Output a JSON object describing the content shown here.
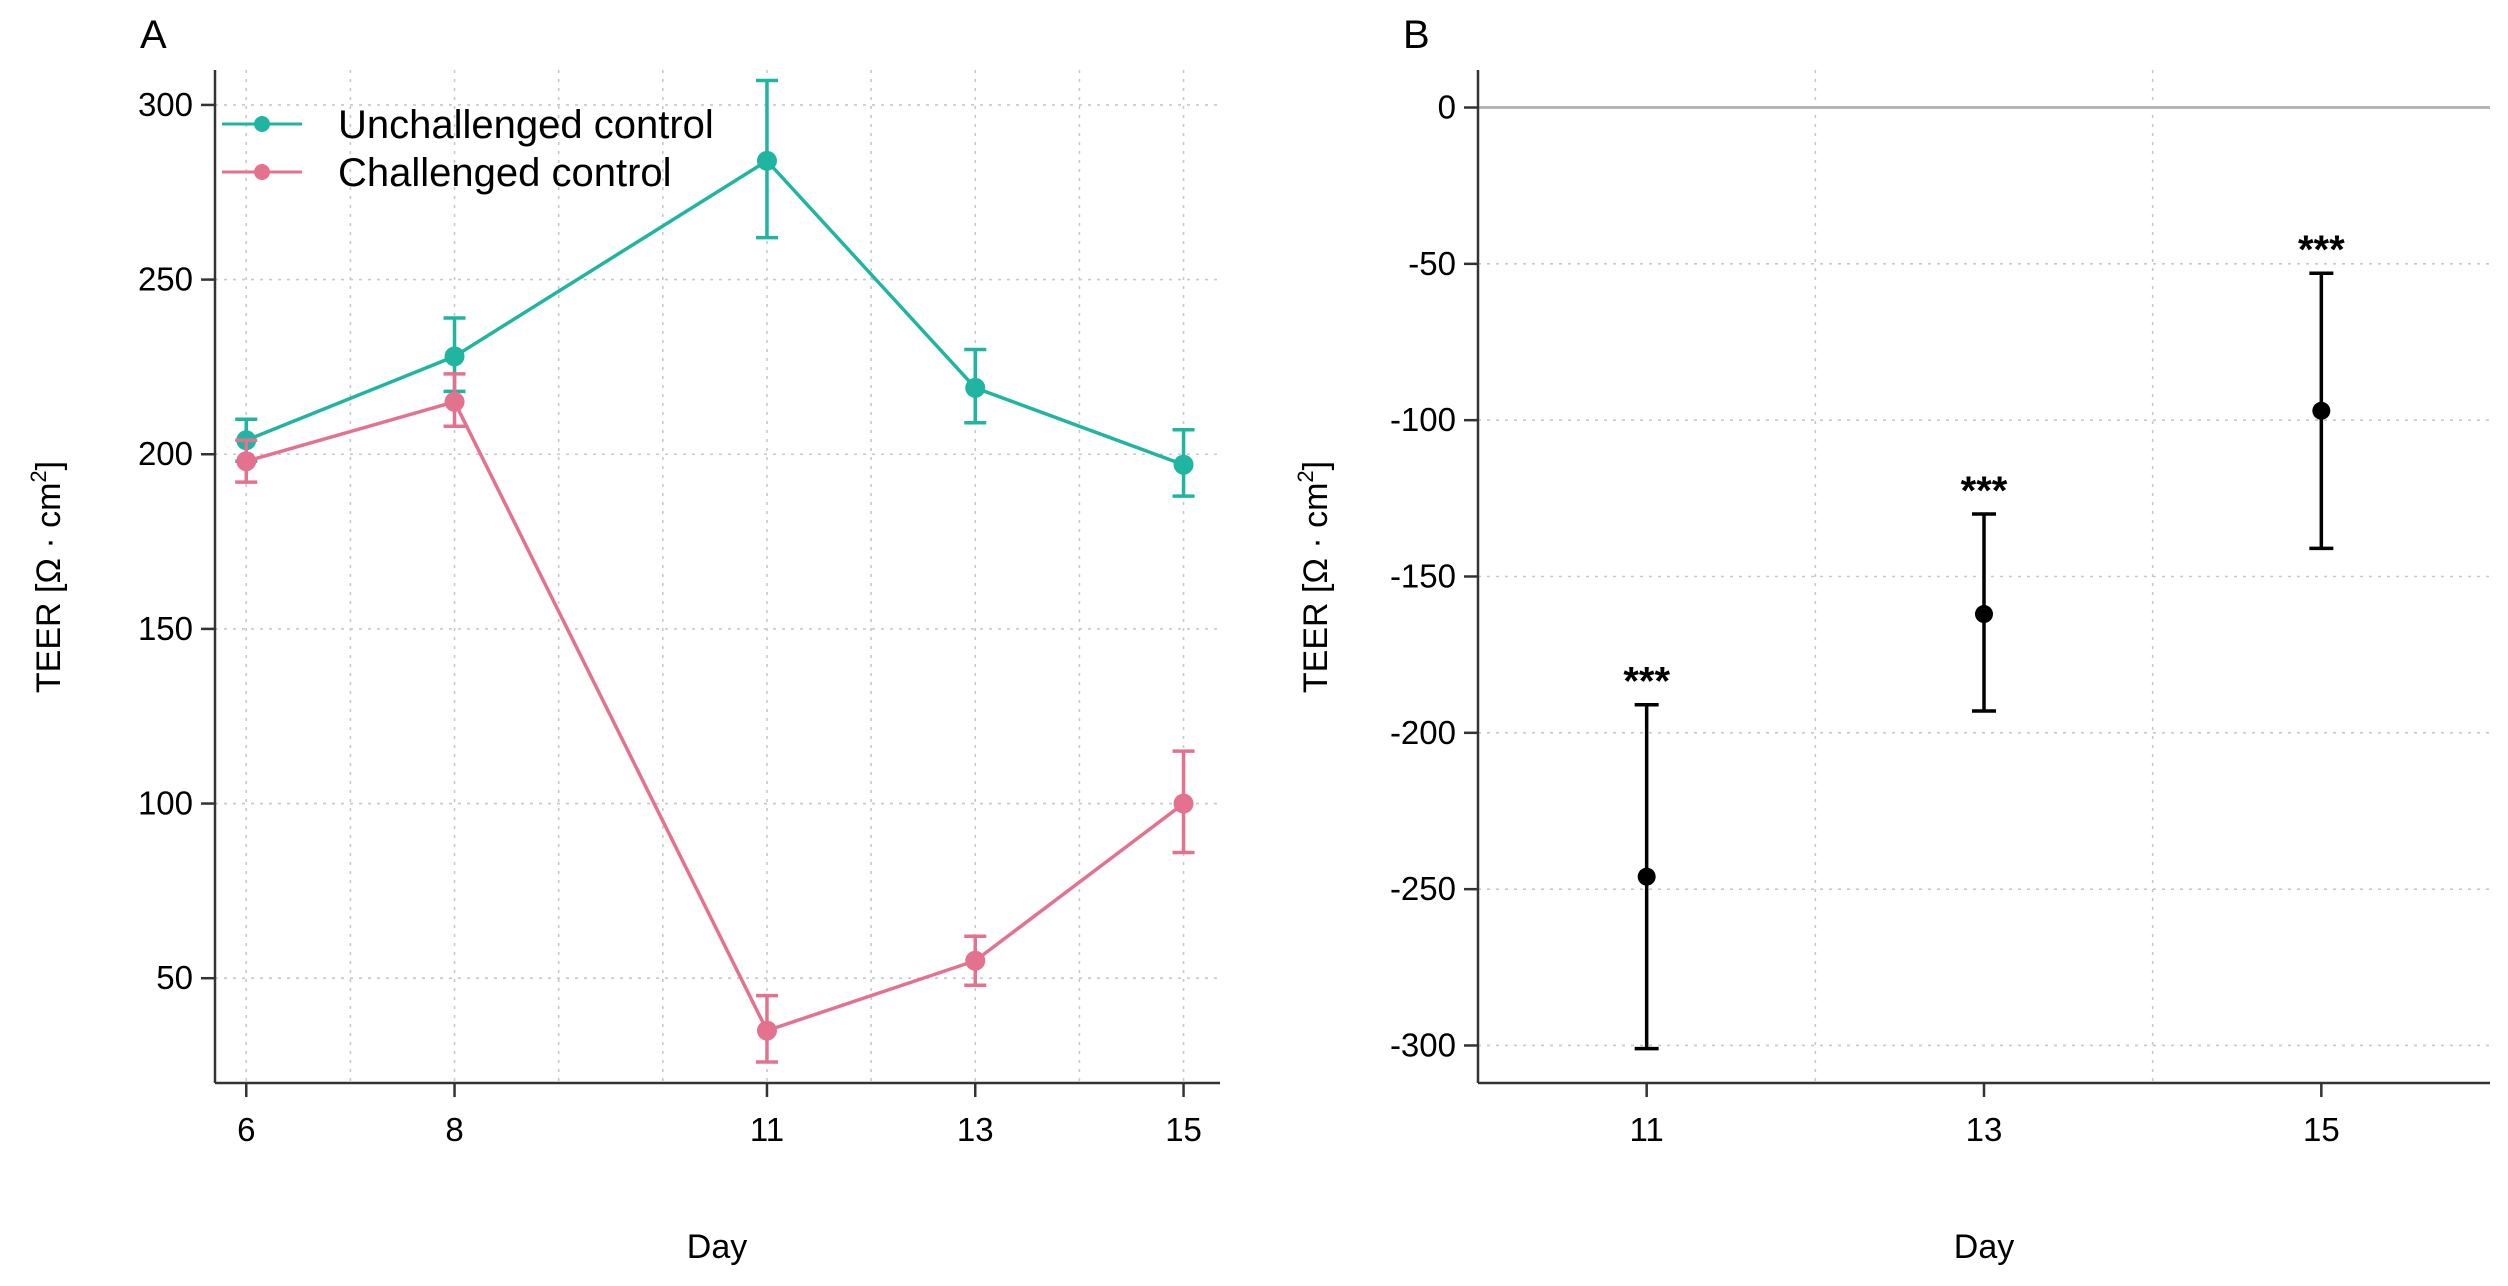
{
  "chart_data": [
    {
      "type": "line",
      "panel_label": "A",
      "xlabel": "Day",
      "ylabel": "TEER [Ω · cm²]",
      "ylabel_main": "TEER [Ω · cm",
      "ylabel_sup": "2",
      "ylabel_end": "]",
      "x": [
        6,
        8,
        11,
        13,
        15
      ],
      "x_tick_labels": [
        "6",
        "8",
        "11",
        "13",
        "15"
      ],
      "xlim": [
        5.7,
        15.35
      ],
      "ylim": [
        20,
        310
      ],
      "y_ticks": [
        50,
        100,
        150,
        200,
        250,
        300
      ],
      "y_tick_labels": [
        "50",
        "100",
        "150",
        "200",
        "250",
        "300"
      ],
      "grid": true,
      "legend_position": "top-left",
      "series": [
        {
          "name": "Unchallenged control",
          "color": "#1fb5a0",
          "values": [
            204,
            228,
            284,
            219,
            197
          ],
          "error_low": [
            198,
            218,
            262,
            209,
            188
          ],
          "error_high": [
            210,
            239,
            307,
            230,
            207
          ]
        },
        {
          "name": "Challenged control",
          "color": "#e4728e",
          "values": [
            198,
            215,
            35,
            55,
            100
          ],
          "error_low": [
            192,
            208,
            26,
            48,
            86
          ],
          "error_high": [
            204,
            223,
            45,
            62,
            115
          ]
        }
      ]
    },
    {
      "type": "scatter",
      "panel_label": "B",
      "xlabel": "Day",
      "ylabel": "TEER [Ω · cm²]",
      "ylabel_main": "TEER [Ω · cm",
      "ylabel_sup": "2",
      "ylabel_end": "]",
      "x_tick_labels": [
        "11",
        "13",
        "15"
      ],
      "ylim": [
        -312,
        12
      ],
      "y_ticks": [
        0,
        -50,
        -100,
        -150,
        -200,
        -250,
        -300
      ],
      "y_tick_labels": [
        "0",
        "-50",
        "-100",
        "-150",
        "-200",
        "-250",
        "-300"
      ],
      "reference_line": 0,
      "grid": true,
      "series": [
        {
          "color": "#000000",
          "values": [
            -246,
            -162,
            -97
          ],
          "error_low": [
            -301,
            -193,
            -141
          ],
          "error_high": [
            -191,
            -130,
            -53
          ],
          "annotations": [
            "***",
            "***",
            "***"
          ]
        }
      ]
    }
  ]
}
